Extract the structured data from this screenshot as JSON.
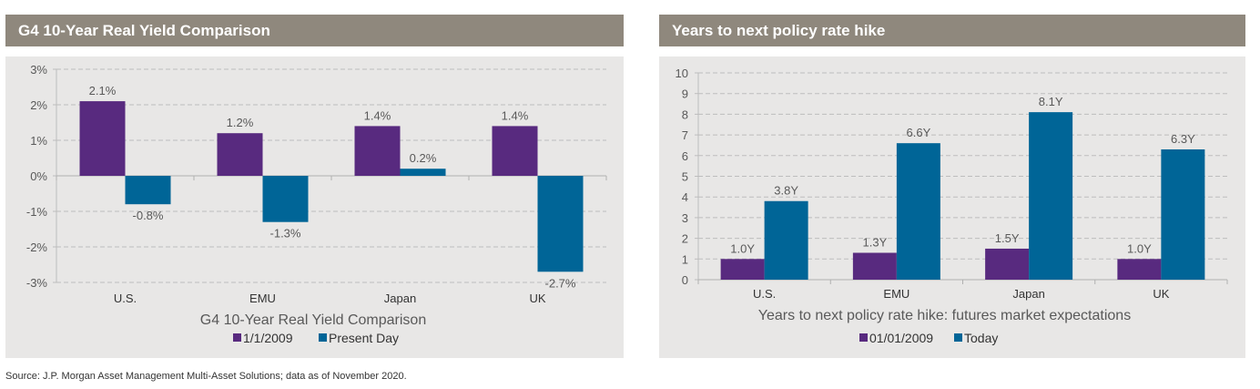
{
  "panels": [
    {
      "header": "G4 10-Year Real Yield Comparison"
    },
    {
      "header": "Years to next policy rate hike"
    }
  ],
  "source": "Source: J.P. Morgan Asset Management Multi-Asset Solutions; data as of November 2020.",
  "colors": {
    "series1": "#582a7f",
    "series2": "#006597",
    "grid": "#bdbdbd",
    "text": "#595959"
  },
  "chart_data": [
    {
      "type": "bar",
      "title": "G4 10-Year Real Yield Comparison",
      "xlabel": "G4 10-Year Real Yield Comparison",
      "ylabel": "",
      "categories": [
        "U.S.",
        "EMU",
        "Japan",
        "UK"
      ],
      "series": [
        {
          "name": "1/1/2009",
          "values": [
            2.1,
            1.2,
            1.4,
            1.4
          ],
          "labels": [
            "2.1%",
            "1.2%",
            "1.4%",
            "1.4%"
          ]
        },
        {
          "name": "Present Day",
          "values": [
            -0.8,
            -1.3,
            0.2,
            -2.7
          ],
          "labels": [
            "-0.8%",
            "-1.3%",
            "0.2%",
            "-2.7%"
          ]
        }
      ],
      "ylim": [
        -3,
        3
      ],
      "yticks": [
        "-3%",
        "-2%",
        "-1%",
        "0%",
        "1%",
        "2%",
        "3%"
      ],
      "ytick_values": [
        -3,
        -2,
        -1,
        0,
        1,
        2,
        3
      ],
      "grid": true,
      "legend": "bottom"
    },
    {
      "type": "bar",
      "title": "Years to next policy rate hike",
      "xlabel": "Years to next policy rate hike: futures market expectations",
      "ylabel": "",
      "categories": [
        "U.S.",
        "EMU",
        "Japan",
        "UK"
      ],
      "series": [
        {
          "name": "01/01/2009",
          "values": [
            1.0,
            1.3,
            1.5,
            1.0
          ],
          "labels": [
            "1.0Y",
            "1.3Y",
            "1.5Y",
            "1.0Y"
          ]
        },
        {
          "name": "Today",
          "values": [
            3.8,
            6.6,
            8.1,
            6.3
          ],
          "labels": [
            "3.8Y",
            "6.6Y",
            "8.1Y",
            "6.3Y"
          ]
        }
      ],
      "ylim": [
        0,
        10
      ],
      "yticks": [
        "0",
        "1",
        "2",
        "3",
        "4",
        "5",
        "6",
        "7",
        "8",
        "9",
        "10"
      ],
      "ytick_values": [
        0,
        1,
        2,
        3,
        4,
        5,
        6,
        7,
        8,
        9,
        10
      ],
      "grid": true,
      "legend": "bottom"
    }
  ]
}
